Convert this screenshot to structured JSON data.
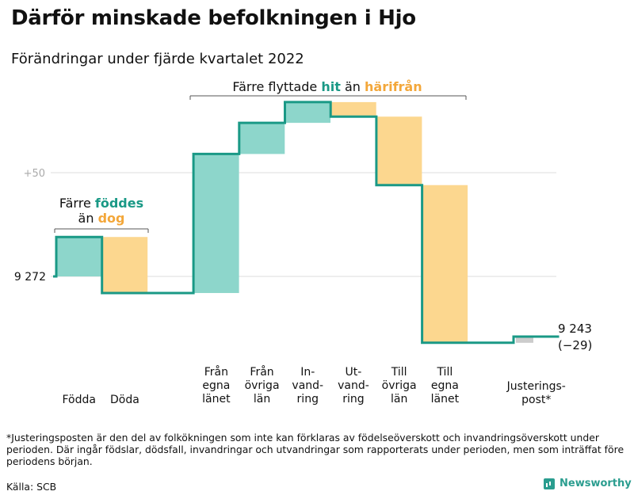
{
  "title": "Därför minskade befolkningen i Hjo",
  "subtitle": "Förändringar under fjärde kvartalet 2022",
  "colors": {
    "increase": "#8dd6cb",
    "decrease": "#fcd78f",
    "adjustment": "#cccccc",
    "line": "#1a9986",
    "teal_text": "#1a9986",
    "orange_text": "#f3a73a"
  },
  "chart_data": {
    "type": "waterfall",
    "start_value": 9272,
    "start_label": "9 272",
    "end_value": 9243,
    "end_label": "9 243",
    "change_label": "(−29)",
    "reference_line": {
      "label": "+50",
      "offset": 50
    },
    "steps": [
      {
        "label": [
          "Födda"
        ],
        "change": 19,
        "kind": "increase"
      },
      {
        "label": [
          "Döda"
        ],
        "change": -27,
        "kind": "decrease"
      },
      {
        "label": [
          "Från",
          "egna",
          "länet"
        ],
        "change": 67,
        "kind": "increase"
      },
      {
        "label": [
          "Från",
          "övriga",
          "län"
        ],
        "change": 15,
        "kind": "increase"
      },
      {
        "label": [
          "In-",
          "vand-",
          "ring"
        ],
        "change": 10,
        "kind": "increase"
      },
      {
        "label": [
          "Ut-",
          "vand-",
          "ring"
        ],
        "change": -7,
        "kind": "decrease"
      },
      {
        "label": [
          "Till",
          "övriga",
          "län"
        ],
        "change": -33,
        "kind": "decrease"
      },
      {
        "label": [
          "Till",
          "egna",
          "länet"
        ],
        "change": -76,
        "kind": "decrease"
      },
      {
        "label": [
          "Justerings-",
          "post*"
        ],
        "change": 3,
        "kind": "adjustment"
      }
    ],
    "annotations": [
      {
        "id": "births",
        "lines": [
          [
            "Färre ",
            "födde",
            "s"
          ],
          [
            "än ",
            "dog"
          ]
        ]
      },
      {
        "id": "moves",
        "parts": [
          "Färre flyttade ",
          "hit",
          " än ",
          "härifrån"
        ]
      }
    ]
  },
  "footnote": "*Justeringsposten är den del av folkökningen som inte kan förklaras av födelseöverskott och invandringsöverskott under perioden. Där ingår födslar, dödsfall, invandringar och utvandringar som rapporterats under perioden, men som inträffat före periodens början.",
  "source": "Källa: SCB",
  "logo": "Newsworthy"
}
